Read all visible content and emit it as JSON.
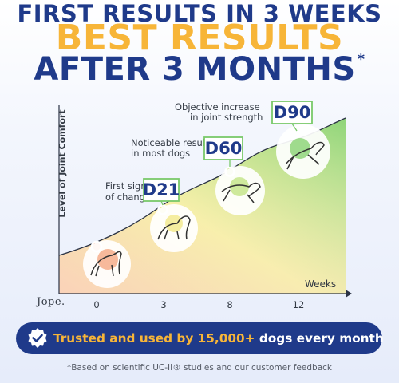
{
  "headline": {
    "line1": "FIRST RESULTS IN 3 WEEKS",
    "line2": "BEST RESULTS",
    "line3": "AFTER 3 MONTHS",
    "line3_mark": "*"
  },
  "chart": {
    "y_axis_label": "Level of Joint Comfort",
    "x_axis_label": "Weeks",
    "x_ticks": [
      "0",
      "3",
      "8",
      "12"
    ],
    "milestones": [
      {
        "day": "D21",
        "caption_lines": [
          "First signs",
          "of change"
        ]
      },
      {
        "day": "D60",
        "caption_lines": [
          "Noticeable results",
          "in most dogs"
        ]
      },
      {
        "day": "D90",
        "caption_lines": [
          "Objective increase",
          "in joint strength"
        ]
      }
    ],
    "colors": {
      "low": "#f9c8a8",
      "mid": "#f6ef9c",
      "high": "#8fd57a",
      "tag_border": "#79c96a"
    }
  },
  "brand": {
    "logo_text": "Jope."
  },
  "banner": {
    "highlight_text": "Trusted and used by 15,000+",
    "rest_text": "dogs every month",
    "badge_icon": "check-badge-icon",
    "bg_color": "#1f3a8a",
    "highlight_color": "#f7b538"
  },
  "footnote": "*Based on scientific UC-II® studies and our customer feedback"
}
